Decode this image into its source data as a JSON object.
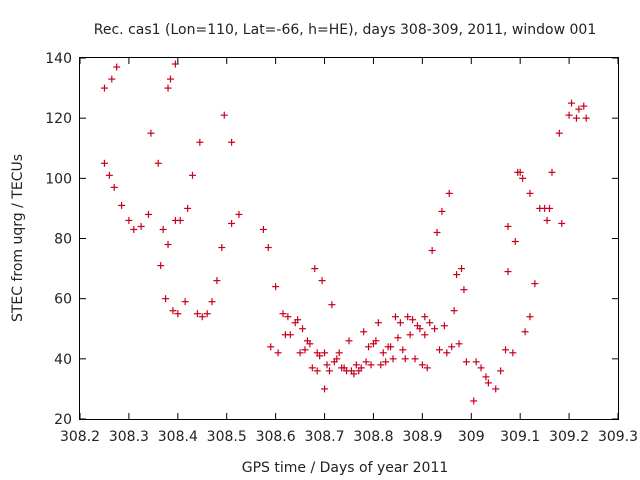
{
  "chart_data": {
    "type": "scatter",
    "title": "Rec. cas1 (Lon=110, Lat=-66, h=HE), days 308-309, 2011, window 001",
    "xlabel": "GPS time / Days of year 2011",
    "ylabel": "STEC from uqrg / TECUs",
    "xlim": [
      308.2,
      309.3
    ],
    "ylim": [
      20,
      140
    ],
    "xticks": [
      308.2,
      308.3,
      308.4,
      308.5,
      308.6,
      308.7,
      308.8,
      308.9,
      309,
      309.1,
      309.2,
      309.3
    ],
    "xtick_labels": [
      "308.2",
      "308.3",
      "308.4",
      "308.5",
      "308.6",
      "308.7",
      "308.8",
      "308.9",
      "309",
      "309.1",
      "309.2",
      "309.3"
    ],
    "yticks": [
      20,
      40,
      60,
      80,
      100,
      120,
      140
    ],
    "ytick_labels": [
      "20",
      "40",
      "60",
      "80",
      "100",
      "120",
      "140"
    ],
    "grid": false,
    "marker": "plus",
    "marker_color": "#c8001e",
    "points": [
      [
        308.25,
        130
      ],
      [
        308.265,
        133
      ],
      [
        308.275,
        137
      ],
      [
        308.25,
        105
      ],
      [
        308.26,
        101
      ],
      [
        308.27,
        97
      ],
      [
        308.285,
        91
      ],
      [
        308.3,
        86
      ],
      [
        308.31,
        83
      ],
      [
        308.325,
        84
      ],
      [
        308.34,
        88
      ],
      [
        308.345,
        115
      ],
      [
        308.36,
        105
      ],
      [
        308.37,
        83
      ],
      [
        308.365,
        71
      ],
      [
        308.375,
        60
      ],
      [
        308.38,
        78
      ],
      [
        308.39,
        56
      ],
      [
        308.395,
        86
      ],
      [
        308.4,
        55
      ],
      [
        308.405,
        86
      ],
      [
        308.415,
        59
      ],
      [
        308.385,
        133
      ],
      [
        308.395,
        138
      ],
      [
        308.38,
        130
      ],
      [
        308.42,
        90
      ],
      [
        308.43,
        101
      ],
      [
        308.44,
        55
      ],
      [
        308.445,
        112
      ],
      [
        308.45,
        54
      ],
      [
        308.46,
        55
      ],
      [
        308.47,
        59
      ],
      [
        308.48,
        66
      ],
      [
        308.49,
        77
      ],
      [
        308.495,
        121
      ],
      [
        308.51,
        112
      ],
      [
        308.51,
        85
      ],
      [
        308.525,
        88
      ],
      [
        308.575,
        83
      ],
      [
        308.585,
        77
      ],
      [
        308.59,
        44
      ],
      [
        308.6,
        64
      ],
      [
        308.605,
        42
      ],
      [
        308.615,
        55
      ],
      [
        308.62,
        48
      ],
      [
        308.625,
        54
      ],
      [
        308.63,
        48
      ],
      [
        308.64,
        52
      ],
      [
        308.645,
        53
      ],
      [
        308.65,
        42
      ],
      [
        308.655,
        50
      ],
      [
        308.66,
        43
      ],
      [
        308.665,
        46
      ],
      [
        308.67,
        45
      ],
      [
        308.675,
        37
      ],
      [
        308.68,
        70
      ],
      [
        308.685,
        42
      ],
      [
        308.685,
        36
      ],
      [
        308.69,
        41
      ],
      [
        308.695,
        66
      ],
      [
        308.7,
        42
      ],
      [
        308.7,
        30
      ],
      [
        308.705,
        38
      ],
      [
        308.71,
        36
      ],
      [
        308.715,
        58
      ],
      [
        308.72,
        39
      ],
      [
        308.725,
        40
      ],
      [
        308.73,
        42
      ],
      [
        308.735,
        37
      ],
      [
        308.74,
        37
      ],
      [
        308.745,
        36
      ],
      [
        308.75,
        46
      ],
      [
        308.755,
        36
      ],
      [
        308.76,
        35
      ],
      [
        308.765,
        38
      ],
      [
        308.77,
        36
      ],
      [
        308.775,
        37
      ],
      [
        308.78,
        49
      ],
      [
        308.785,
        39
      ],
      [
        308.79,
        44
      ],
      [
        308.795,
        38
      ],
      [
        308.8,
        45
      ],
      [
        308.805,
        46
      ],
      [
        308.81,
        52
      ],
      [
        308.815,
        38
      ],
      [
        308.82,
        42
      ],
      [
        308.825,
        39
      ],
      [
        308.83,
        44
      ],
      [
        308.835,
        44
      ],
      [
        308.84,
        40
      ],
      [
        308.845,
        54
      ],
      [
        308.85,
        47
      ],
      [
        308.855,
        52
      ],
      [
        308.86,
        43
      ],
      [
        308.865,
        40
      ],
      [
        308.87,
        54
      ],
      [
        308.875,
        48
      ],
      [
        308.88,
        53
      ],
      [
        308.885,
        40
      ],
      [
        308.89,
        51
      ],
      [
        308.895,
        50
      ],
      [
        308.9,
        38
      ],
      [
        308.905,
        54
      ],
      [
        308.905,
        48
      ],
      [
        308.91,
        37
      ],
      [
        308.915,
        52
      ],
      [
        308.92,
        76
      ],
      [
        308.925,
        50
      ],
      [
        308.93,
        82
      ],
      [
        308.935,
        43
      ],
      [
        308.94,
        89
      ],
      [
        308.945,
        51
      ],
      [
        308.95,
        42
      ],
      [
        308.955,
        95
      ],
      [
        308.96,
        44
      ],
      [
        308.965,
        56
      ],
      [
        308.97,
        68
      ],
      [
        308.975,
        45
      ],
      [
        308.98,
        70
      ],
      [
        308.985,
        63
      ],
      [
        308.99,
        39
      ],
      [
        309.005,
        26
      ],
      [
        309.01,
        39
      ],
      [
        309.02,
        37
      ],
      [
        309.03,
        34
      ],
      [
        309.035,
        32
      ],
      [
        309.05,
        30
      ],
      [
        309.06,
        36
      ],
      [
        309.07,
        43
      ],
      [
        309.075,
        84
      ],
      [
        309.075,
        69
      ],
      [
        309.085,
        42
      ],
      [
        309.09,
        79
      ],
      [
        309.095,
        102
      ],
      [
        309.1,
        102
      ],
      [
        309.105,
        100
      ],
      [
        309.11,
        49
      ],
      [
        309.12,
        54
      ],
      [
        309.12,
        95
      ],
      [
        309.13,
        65
      ],
      [
        309.14,
        90
      ],
      [
        309.15,
        90
      ],
      [
        309.155,
        86
      ],
      [
        309.16,
        90
      ],
      [
        309.165,
        102
      ],
      [
        309.18,
        115
      ],
      [
        309.185,
        85
      ],
      [
        309.2,
        121
      ],
      [
        309.205,
        125
      ],
      [
        309.215,
        120
      ],
      [
        309.22,
        123
      ],
      [
        309.23,
        124
      ],
      [
        309.235,
        120
      ]
    ]
  }
}
